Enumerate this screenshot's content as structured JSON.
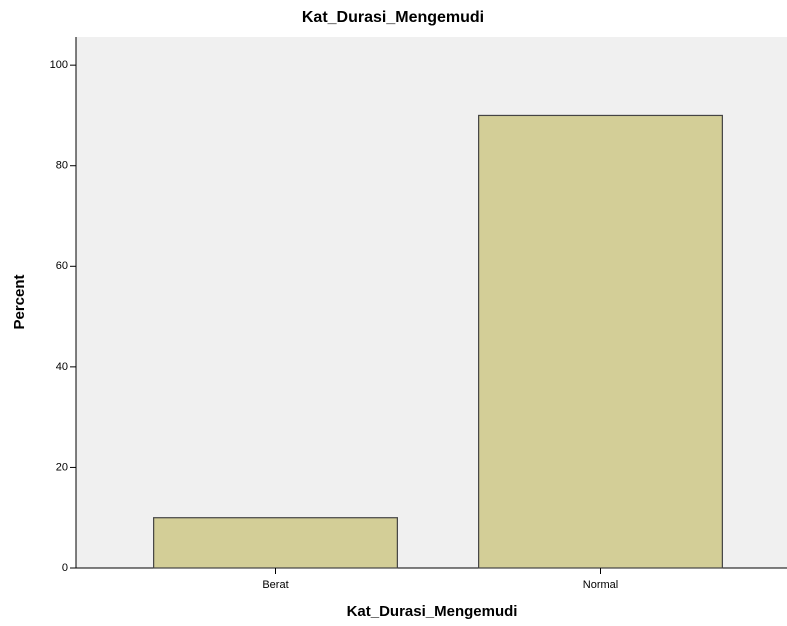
{
  "chart_data": {
    "type": "bar",
    "title": "Kat_Durasi_Mengemudi",
    "x_label": "Kat_Durasi_Mengemudi",
    "y_label": "Percent",
    "categories": [
      "Berat",
      "Normal"
    ],
    "values": [
      10,
      90
    ],
    "color": "#d3ce97",
    "ylim": [
      0,
      105.6
    ],
    "yticks": [
      0,
      20,
      40,
      60,
      80,
      100
    ],
    "grid": false
  }
}
